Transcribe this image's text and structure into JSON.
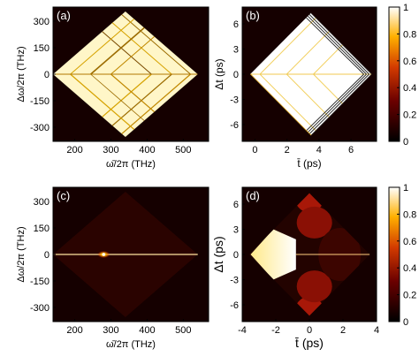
{
  "chart_data": [
    {
      "type": "heatmap",
      "panel_label": "(a)",
      "xlabel": "ω̄/2π (THz)",
      "ylabel": "Δω/2π (THz)",
      "xlim": [
        140,
        570
      ],
      "ylim": [
        -380,
        380
      ],
      "xticks": [
        200,
        300,
        400,
        500
      ],
      "yticks": [
        300,
        150,
        0,
        -150,
        -300
      ],
      "diamond": {
        "center_x": 340,
        "half_width_x": 200,
        "half_height_y": 355
      },
      "style": "bright",
      "colorbar": false
    },
    {
      "type": "heatmap",
      "panel_label": "(b)",
      "xlabel": "t̄ (ps)",
      "ylabel": "Δt (ps)",
      "xlim": [
        -0.8,
        7.6
      ],
      "ylim": [
        -8,
        8
      ],
      "xticks": [
        0,
        2,
        4,
        6
      ],
      "yticks": [
        6,
        3,
        0,
        -3,
        -6
      ],
      "diamond": {
        "center_x": 3.5,
        "half_width_x": 3.8,
        "half_height_y": 7.3
      },
      "style": "white",
      "colorbar": true,
      "colorbar_range": [
        0,
        1
      ],
      "colorbar_ticks": [
        "1",
        "0.8",
        "0.6",
        "0.4",
        "0.2",
        "0"
      ]
    },
    {
      "type": "heatmap",
      "panel_label": "(c)",
      "xlabel": "ω̄/2π (THz)",
      "ylabel": "Δω/2π (THz)",
      "xlim": [
        140,
        570
      ],
      "ylim": [
        -380,
        380
      ],
      "xticks": [
        200,
        300,
        400,
        500
      ],
      "yticks": [
        300,
        150,
        0,
        -150,
        -300
      ],
      "diamond": {
        "center_x": 340,
        "half_width_x": 200,
        "half_height_y": 355
      },
      "style": "dark",
      "peak": {
        "x": 280,
        "y": 0
      },
      "colorbar": false
    },
    {
      "type": "heatmap",
      "panel_label": "(d)",
      "xlabel": "t̄ (ps)",
      "ylabel": "Δt (ps)",
      "xlim": [
        -4,
        4
      ],
      "ylim": [
        -8,
        8
      ],
      "xticks": [
        -4,
        -2,
        0,
        2,
        4
      ],
      "yticks": [
        6,
        3,
        0,
        -3,
        -6
      ],
      "diamond": {
        "center_x": 0,
        "half_width_x": 3.6,
        "half_height_y": 7.3
      },
      "style": "wigner",
      "colorbar": true,
      "colorbar_range": [
        0,
        1
      ],
      "colorbar_ticks": [
        "1",
        "0.8",
        "0.6",
        "0.4",
        "0.2",
        "0"
      ]
    }
  ]
}
